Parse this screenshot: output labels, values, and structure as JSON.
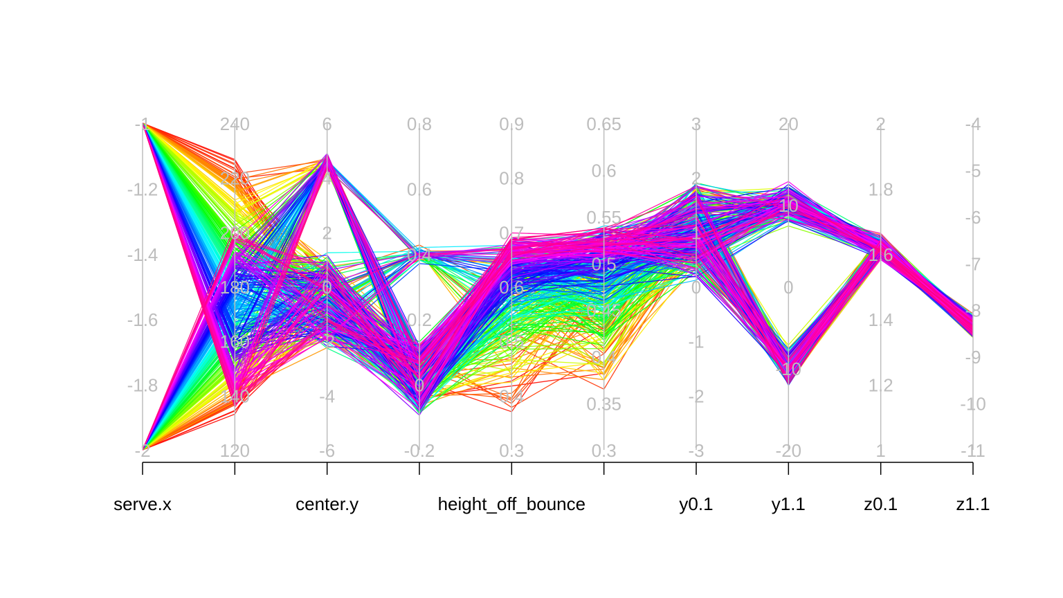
{
  "chart_data": {
    "type": "parallel-coordinates",
    "title": "",
    "axes": [
      {
        "name": "serve.x",
        "show_name": true,
        "range": [
          -2,
          -1
        ],
        "ticks": [
          "-2",
          "-1.8",
          "-1.6",
          "-1.4",
          "-1.2",
          "-1"
        ],
        "tick_values": [
          -2,
          -1.8,
          -1.6,
          -1.4,
          -1.2,
          -1
        ]
      },
      {
        "name": "",
        "show_name": false,
        "range": [
          120,
          240
        ],
        "ticks": [
          "120",
          "140",
          "160",
          "180",
          "200",
          "220",
          "240"
        ],
        "tick_values": [
          120,
          140,
          160,
          180,
          200,
          220,
          240
        ]
      },
      {
        "name": "center.y",
        "show_name": true,
        "range": [
          -6,
          6
        ],
        "ticks": [
          "-6",
          "-4",
          "-2",
          "0",
          "2",
          "4",
          "6"
        ],
        "tick_values": [
          -6,
          -4,
          -2,
          0,
          2,
          4,
          6
        ]
      },
      {
        "name": "",
        "show_name": false,
        "range": [
          -0.2,
          0.8
        ],
        "ticks": [
          "-0.2",
          "0",
          "0.2",
          "0.4",
          "0.6",
          "0.8"
        ],
        "tick_values": [
          -0.2,
          0,
          0.2,
          0.4,
          0.6,
          0.8
        ]
      },
      {
        "name": "height_off_bounce",
        "show_name": true,
        "range": [
          0.3,
          0.9
        ],
        "ticks": [
          "0.3",
          "0.4",
          "0.5",
          "0.6",
          "0.7",
          "0.8",
          "0.9"
        ],
        "tick_values": [
          0.3,
          0.4,
          0.5,
          0.6,
          0.7,
          0.8,
          0.9
        ]
      },
      {
        "name": "",
        "show_name": false,
        "range": [
          0.3,
          0.65
        ],
        "ticks": [
          "0.3",
          "0.35",
          "0.4",
          "0.45",
          "0.5",
          "0.55",
          "0.6",
          "0.65"
        ],
        "tick_values": [
          0.3,
          0.35,
          0.4,
          0.45,
          0.5,
          0.55,
          0.6,
          0.65
        ]
      },
      {
        "name": "y0.1",
        "show_name": true,
        "range": [
          -3,
          3
        ],
        "ticks": [
          "-3",
          "-2",
          "-1",
          "0",
          "1",
          "2",
          "3"
        ],
        "tick_values": [
          -3,
          -2,
          -1,
          0,
          1,
          2,
          3
        ]
      },
      {
        "name": "y1.1",
        "show_name": true,
        "range": [
          -20,
          20
        ],
        "ticks": [
          "-20",
          "-10",
          "0",
          "10",
          "20"
        ],
        "tick_values": [
          -20,
          -10,
          0,
          10,
          20
        ]
      },
      {
        "name": "z0.1",
        "show_name": true,
        "range": [
          1,
          2
        ],
        "ticks": [
          "1",
          "1.2",
          "1.4",
          "1.6",
          "1.8",
          "2"
        ],
        "tick_values": [
          1,
          1.2,
          1.4,
          1.6,
          1.8,
          2
        ]
      },
      {
        "name": "z1.1",
        "show_name": true,
        "range": [
          -11,
          -4
        ],
        "ticks": [
          "-11",
          "-10",
          "-9",
          "-8",
          "-7",
          "-6",
          "-5",
          "-4"
        ],
        "tick_values": [
          -11,
          -10,
          -9,
          -8,
          -7,
          -6,
          -5,
          -4
        ]
      }
    ],
    "color_scheme": "rainbow",
    "line_count_approx": 400,
    "grid": false,
    "legend": "none"
  }
}
